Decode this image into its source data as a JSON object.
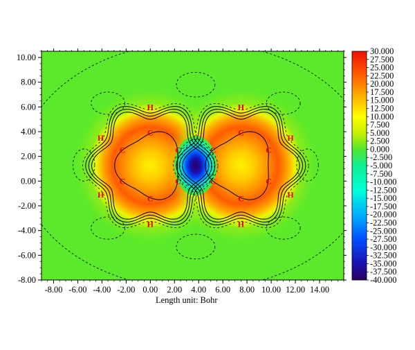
{
  "chart_data": {
    "type": "heatmap",
    "title": "",
    "xlabel": "Length unit: Bohr",
    "ylabel": "",
    "xlim": [
      -9.0,
      16.0
    ],
    "ylim": [
      -8.0,
      10.5
    ],
    "x_ticks": [
      -8,
      -6,
      -4,
      -2,
      0,
      2,
      4,
      6,
      8,
      10,
      12,
      14
    ],
    "x_tick_labels": [
      "-8.00",
      "-6.00",
      "-4.00",
      "-2.00",
      "0.00",
      "2.00",
      "4.00",
      "6.00",
      "8.00",
      "10.00",
      "12.00",
      "14.00"
    ],
    "y_ticks": [
      10,
      8,
      6,
      4,
      2,
      0,
      -2,
      -4,
      -6,
      -8
    ],
    "y_tick_labels": [
      "10.00",
      "8.00",
      "6.00",
      "4.00",
      "2.00",
      "0.00",
      "-2.00",
      "-4.00",
      "-6.00",
      "-8.00"
    ],
    "colorbar": {
      "min": -40.0,
      "max": 30.0,
      "labels": [
        "30.000",
        "27.500",
        "25.000",
        "22.500",
        "20.000",
        "17.500",
        "15.000",
        "12.500",
        "10.000",
        "7.500",
        "5.000",
        "2.500",
        "0.000",
        "-2.500",
        "-5.000",
        "-7.500",
        "-10.000",
        "-12.500",
        "-15.000",
        "-17.500",
        "-20.000",
        "-22.500",
        "-25.000",
        "-27.500",
        "-30.000",
        "-32.500",
        "-35.000",
        "-37.500",
        "-40.000"
      ],
      "colors": [
        {
          "value": -40,
          "color": "#2a0060"
        },
        {
          "value": -35,
          "color": "#1a10b0"
        },
        {
          "value": -27.5,
          "color": "#0050ff"
        },
        {
          "value": -20,
          "color": "#00b0ff"
        },
        {
          "value": -12.5,
          "color": "#00ffd8"
        },
        {
          "value": -5,
          "color": "#10f090"
        },
        {
          "value": 0,
          "color": "#50e830"
        },
        {
          "value": 5,
          "color": "#c8f000"
        },
        {
          "value": 10,
          "color": "#ffff00"
        },
        {
          "value": 15,
          "color": "#ffc000"
        },
        {
          "value": 22.5,
          "color": "#ff6000"
        },
        {
          "value": 30,
          "color": "#ee1000"
        }
      ]
    },
    "atoms": [
      {
        "label": "H",
        "x": 0.0,
        "y": 6.0
      },
      {
        "label": "H",
        "x": -4.1,
        "y": 3.5
      },
      {
        "label": "H",
        "x": -4.1,
        "y": -1.1
      },
      {
        "label": "H",
        "x": 0.0,
        "y": -3.5
      },
      {
        "label": "C",
        "x": 0.0,
        "y": 3.9
      },
      {
        "label": "C",
        "x": -2.3,
        "y": 2.5
      },
      {
        "label": "C",
        "x": -2.3,
        "y": 0.0
      },
      {
        "label": "C",
        "x": 0.0,
        "y": -1.4
      },
      {
        "label": "C",
        "x": 2.3,
        "y": 2.5
      },
      {
        "label": "C",
        "x": 2.3,
        "y": 0.0
      },
      {
        "label": "H",
        "x": 7.5,
        "y": 6.0
      },
      {
        "label": "H",
        "x": 11.6,
        "y": 3.5
      },
      {
        "label": "H",
        "x": 11.6,
        "y": -1.1
      },
      {
        "label": "H",
        "x": 7.5,
        "y": -3.5
      },
      {
        "label": "C",
        "x": 7.5,
        "y": 3.9
      },
      {
        "label": "C",
        "x": 9.8,
        "y": 2.5
      },
      {
        "label": "C",
        "x": 9.8,
        "y": 0.0
      },
      {
        "label": "C",
        "x": 7.5,
        "y": -1.4
      },
      {
        "label": "C",
        "x": 5.2,
        "y": 2.5
      },
      {
        "label": "C",
        "x": 5.2,
        "y": 0.0
      }
    ],
    "field_features": {
      "background_value": 0.5,
      "ring_centers": [
        [
          0.0,
          1.25
        ],
        [
          7.5,
          1.25
        ]
      ],
      "ring_center_value": 11.0,
      "ring_body_value": 23.0,
      "minimum": {
        "x": 3.75,
        "y": 1.25,
        "value": -40.0
      }
    }
  }
}
